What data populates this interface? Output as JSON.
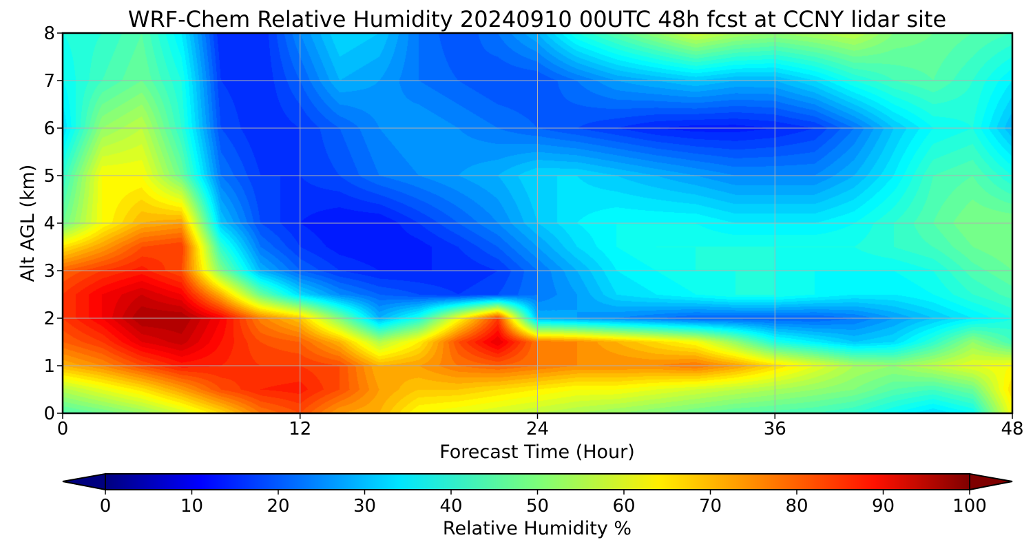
{
  "chart_data": {
    "type": "heatmap",
    "title": "WRF-Chem Relative Humidity 20240910 00UTC 48h fcst at CCNY lidar site",
    "xlabel": "Forecast Time (Hour)",
    "ylabel": "Alt AGL (km)",
    "xlim": [
      0,
      48
    ],
    "ylim": [
      0,
      8
    ],
    "xticks": [
      0,
      12,
      24,
      36,
      48
    ],
    "yticks": [
      0,
      1,
      2,
      3,
      4,
      5,
      6,
      7,
      8
    ],
    "grid": true,
    "x": [
      0,
      2,
      4,
      6,
      8,
      10,
      12,
      14,
      16,
      18,
      20,
      22,
      24,
      26,
      28,
      30,
      32,
      34,
      36,
      38,
      40,
      42,
      44,
      46,
      48
    ],
    "y": [
      0,
      0.5,
      1,
      1.5,
      2,
      2.5,
      3,
      3.5,
      4,
      5,
      6,
      7,
      8
    ],
    "z": [
      [
        45,
        48,
        52,
        58,
        66,
        76,
        80,
        72,
        70,
        62,
        60,
        58,
        56,
        54,
        52,
        50,
        48,
        46,
        45,
        44,
        42,
        38,
        34,
        38,
        62
      ],
      [
        55,
        60,
        65,
        72,
        80,
        84,
        85,
        80,
        72,
        68,
        68,
        66,
        64,
        62,
        62,
        60,
        58,
        56,
        54,
        52,
        50,
        46,
        44,
        48,
        66
      ],
      [
        70,
        74,
        80,
        85,
        84,
        82,
        82,
        80,
        70,
        72,
        76,
        78,
        76,
        74,
        74,
        74,
        76,
        72,
        66,
        60,
        54,
        52,
        56,
        60,
        62
      ],
      [
        78,
        82,
        90,
        93,
        86,
        80,
        78,
        70,
        55,
        64,
        80,
        90,
        76,
        74,
        70,
        66,
        62,
        52,
        40,
        36,
        32,
        34,
        42,
        52,
        44
      ],
      [
        82,
        88,
        96,
        96,
        88,
        75,
        68,
        50,
        30,
        40,
        62,
        82,
        30,
        28,
        26,
        24,
        22,
        22,
        22,
        22,
        24,
        28,
        32,
        36,
        40
      ],
      [
        82,
        88,
        92,
        88,
        70,
        48,
        34,
        26,
        22,
        20,
        18,
        20,
        24,
        28,
        34,
        36,
        38,
        40,
        40,
        38,
        36,
        36,
        38,
        42,
        45
      ],
      [
        78,
        82,
        85,
        80,
        50,
        30,
        22,
        18,
        16,
        16,
        16,
        18,
        24,
        30,
        36,
        38,
        40,
        40,
        40,
        38,
        38,
        38,
        40,
        45,
        48
      ],
      [
        65,
        72,
        80,
        82,
        42,
        24,
        18,
        15,
        14,
        15,
        18,
        22,
        28,
        34,
        38,
        40,
        40,
        40,
        40,
        40,
        40,
        42,
        44,
        48,
        50
      ],
      [
        48,
        62,
        70,
        72,
        32,
        20,
        16,
        14,
        14,
        18,
        22,
        26,
        32,
        36,
        38,
        38,
        38,
        36,
        36,
        36,
        38,
        42,
        46,
        50,
        50
      ],
      [
        42,
        62,
        62,
        48,
        24,
        18,
        18,
        20,
        24,
        26,
        28,
        30,
        34,
        34,
        32,
        30,
        28,
        26,
        26,
        26,
        30,
        36,
        44,
        46,
        40
      ],
      [
        34,
        52,
        56,
        42,
        20,
        16,
        18,
        22,
        26,
        28,
        26,
        24,
        22,
        20,
        18,
        16,
        15,
        15,
        16,
        18,
        24,
        32,
        38,
        40,
        30
      ],
      [
        38,
        44,
        48,
        40,
        18,
        16,
        22,
        30,
        28,
        24,
        22,
        20,
        20,
        24,
        28,
        30,
        32,
        30,
        30,
        34,
        40,
        44,
        46,
        42,
        36
      ],
      [
        40,
        42,
        46,
        36,
        16,
        16,
        26,
        34,
        32,
        24,
        20,
        24,
        30,
        40,
        46,
        52,
        58,
        54,
        52,
        54,
        56,
        50,
        48,
        46,
        44
      ]
    ],
    "colorbar": {
      "label": "Relative Humidity %",
      "min": 0,
      "max": 100,
      "ticks": [
        0,
        10,
        20,
        30,
        40,
        50,
        60,
        70,
        80,
        90,
        100
      ],
      "extend": "both",
      "colormap": "jet"
    }
  }
}
